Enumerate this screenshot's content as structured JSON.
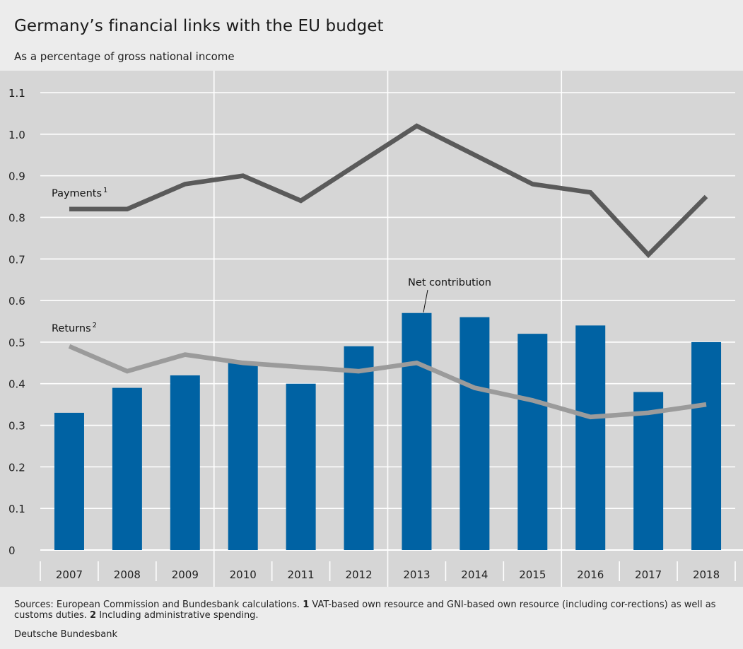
{
  "chart_data": {
    "type": "bar",
    "title": "Germany’s financial links with the EU budget",
    "subtitle": "As a percentage of gross national income",
    "categories": [
      "2007",
      "2008",
      "2009",
      "2010",
      "2011",
      "2012",
      "2013",
      "2014",
      "2015",
      "2016",
      "2017",
      "2018"
    ],
    "ylim": [
      0,
      1.1
    ],
    "yticks": [
      "0",
      "0.1",
      "0.2",
      "0.3",
      "0.4",
      "0.5",
      "0.6",
      "0.7",
      "0.8",
      "0.9",
      "1.0",
      "1.1"
    ],
    "grid": true,
    "series": [
      {
        "name": "Net contribution",
        "kind": "bar",
        "color": "#0062a3",
        "values": [
          0.33,
          0.39,
          0.42,
          0.45,
          0.4,
          0.49,
          0.57,
          0.56,
          0.52,
          0.54,
          0.38,
          0.5
        ]
      },
      {
        "name": "Payments",
        "footnote_marker": "1",
        "kind": "line",
        "color": "#5a5a5a",
        "values": [
          0.82,
          0.82,
          0.88,
          0.9,
          0.84,
          0.93,
          1.02,
          0.95,
          0.88,
          0.86,
          0.71,
          0.85
        ]
      },
      {
        "name": "Returns",
        "footnote_marker": "2",
        "kind": "line",
        "color": "#9b9b9b",
        "values": [
          0.49,
          0.43,
          0.47,
          0.45,
          0.44,
          0.43,
          0.45,
          0.39,
          0.36,
          0.32,
          0.33,
          0.35
        ]
      }
    ]
  },
  "footnote": {
    "sources_prefix": "Sources: European Commission and Bundesbank calculations. ",
    "n1": "1",
    "n1_text": " VAT-based own resource and GNI-based own resource (including cor-rections) as well as customs duties. ",
    "n2": "2",
    "n2_text": " Including administrative spending."
  },
  "publisher": "Deutsche Bundesbank",
  "colors": {
    "plot_bg": "#d6d6d6",
    "page_bg": "#ececec",
    "grid": "#ffffff",
    "bar": "#0062a3"
  }
}
